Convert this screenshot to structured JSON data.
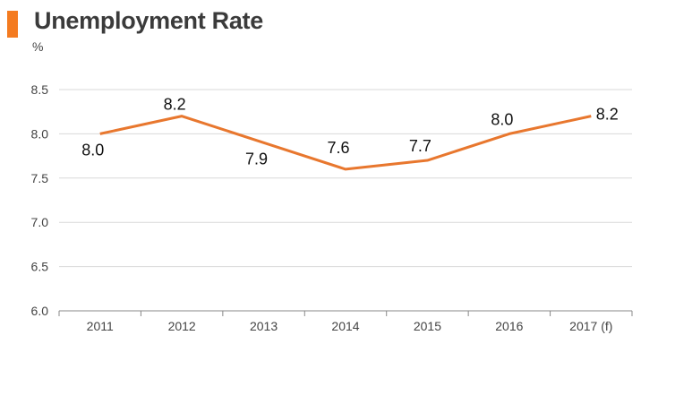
{
  "header": {
    "title": "Unemployment Rate",
    "accent_color": "#f47b20"
  },
  "chart_data": {
    "type": "line",
    "title": "Unemployment Rate",
    "ylabel": "%",
    "xlabel": "",
    "categories": [
      "2011",
      "2012",
      "2013",
      "2014",
      "2015",
      "2016",
      "2017 (f)"
    ],
    "series": [
      {
        "values": [
          8.0,
          8.2,
          7.9,
          7.6,
          7.7,
          8.0,
          8.2
        ],
        "data_labels": [
          "8.0",
          "8.2",
          "7.9",
          "7.6",
          "7.7",
          "8.0",
          "8.2"
        ],
        "color": "#e8772e"
      }
    ],
    "ylim": [
      6.0,
      8.5
    ],
    "yticks": [
      "6.0",
      "6.5",
      "7.0",
      "7.5",
      "8.0",
      "8.5"
    ],
    "grid": true,
    "legend": "none"
  }
}
